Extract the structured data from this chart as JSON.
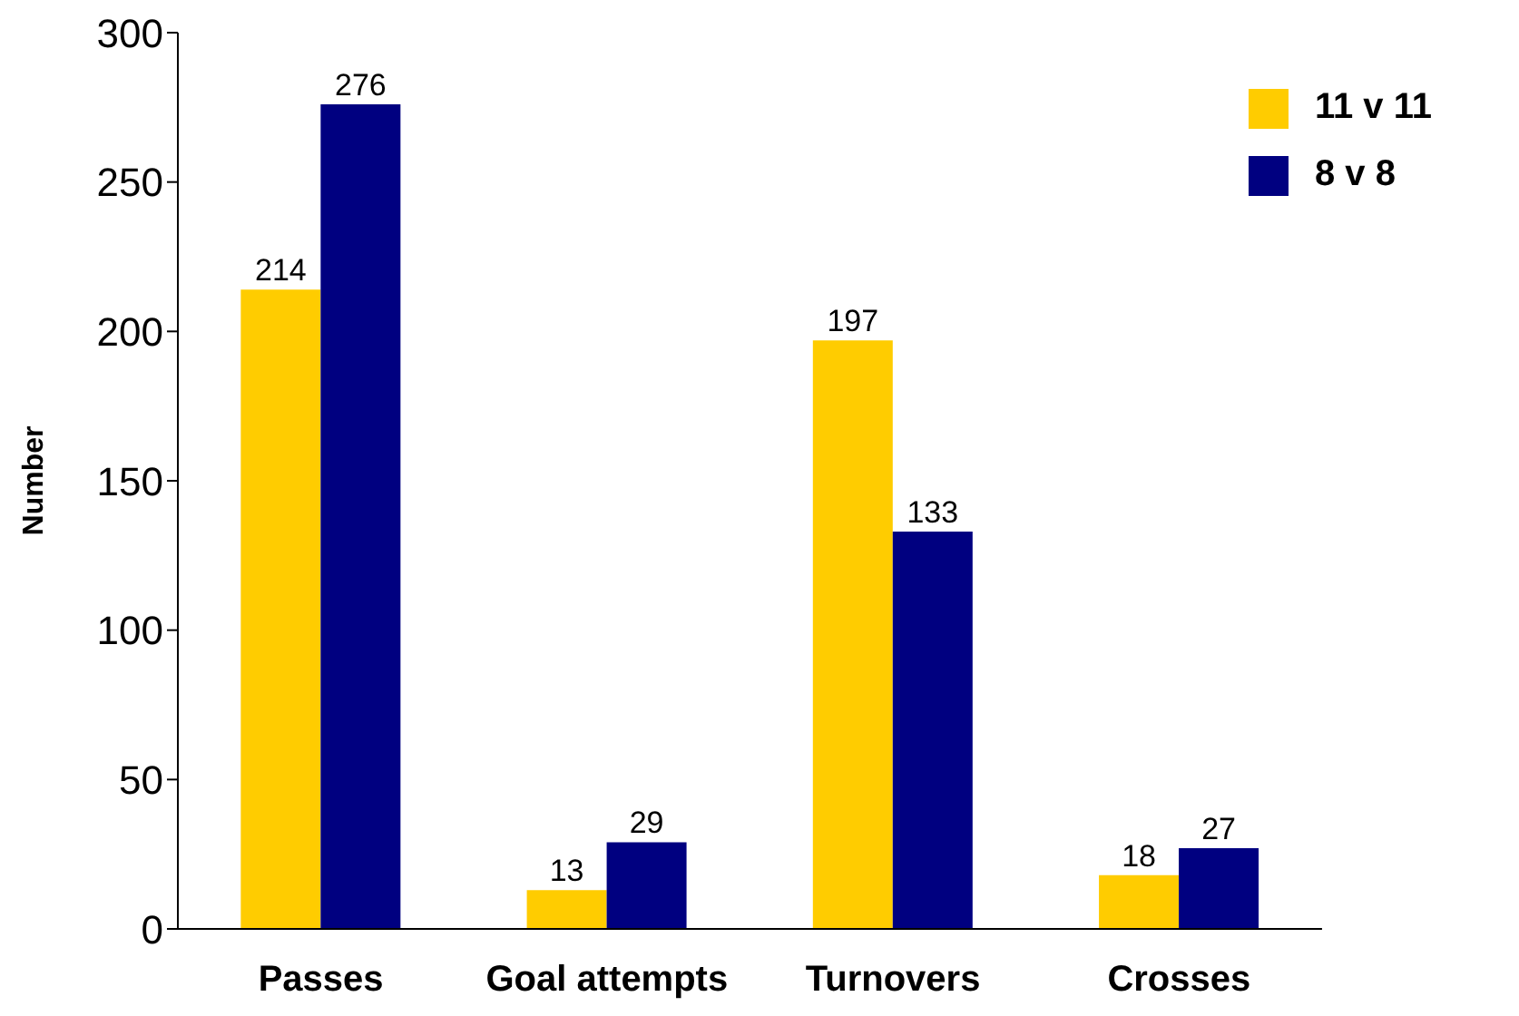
{
  "chart_data": {
    "type": "bar",
    "ylabel": "Number",
    "categories": [
      "Passes",
      "Goal attempts",
      "Turnovers",
      "Crosses"
    ],
    "series": [
      {
        "name": "11 v 11",
        "color": "#ffcc00",
        "values": [
          214,
          13,
          197,
          18
        ]
      },
      {
        "name": "8 v 8",
        "color": "#000080",
        "values": [
          276,
          29,
          133,
          27
        ]
      }
    ],
    "ylim": [
      0,
      300
    ],
    "yticks": [
      0,
      50,
      100,
      150,
      200,
      250,
      300
    ],
    "grid": false,
    "legend": "top right",
    "data_labels": true
  }
}
